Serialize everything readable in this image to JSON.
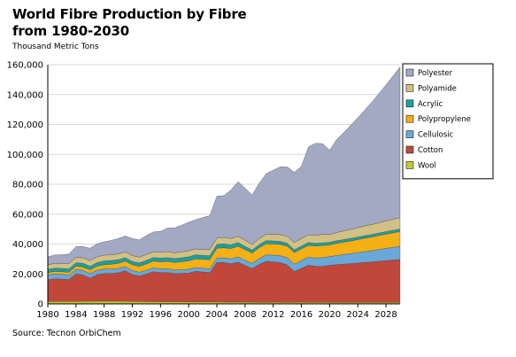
{
  "chart_data": {
    "type": "area",
    "title": "World Fibre Production by Fibre from 1980-2030",
    "subtitle": "Thousand Metric Tons",
    "source": "Source: Tecnon OrbiChem",
    "ylim": [
      0,
      160000
    ],
    "yticks": [
      0,
      20000,
      40000,
      60000,
      80000,
      100000,
      120000,
      140000,
      160000
    ],
    "ytick_labels": [
      "0",
      "20,000",
      "40,000",
      "60,000",
      "80,000",
      "100,000",
      "120,000",
      "140,000",
      "160,000"
    ],
    "xlim": [
      1980,
      2030
    ],
    "xticks": [
      1980,
      1984,
      1988,
      1992,
      1996,
      2000,
      2004,
      2008,
      2012,
      2016,
      2020,
      2024,
      2028
    ],
    "xtick_labels": [
      "1980",
      "1984",
      "1988",
      "1992",
      "1996",
      "2000",
      "2004",
      "2008",
      "2012",
      "2016",
      "2020",
      "2024",
      "2028"
    ],
    "grid": "horizontal",
    "legend": "right",
    "stacked": true,
    "x": [
      1980,
      1981,
      1982,
      1983,
      1984,
      1985,
      1986,
      1987,
      1988,
      1989,
      1990,
      1991,
      1992,
      1993,
      1994,
      1995,
      1996,
      1997,
      1998,
      1999,
      2000,
      2001,
      2002,
      2003,
      2004,
      2005,
      2006,
      2007,
      2008,
      2009,
      2010,
      2011,
      2012,
      2013,
      2014,
      2015,
      2016,
      2017,
      2018,
      2019,
      2020,
      2021,
      2022,
      2023,
      2024,
      2025,
      2026,
      2027,
      2028,
      2029,
      2030
    ],
    "series": [
      {
        "name": "Wool",
        "color": "#c8c832",
        "values": [
          1600,
          1600,
          1600,
          1600,
          1600,
          1700,
          1700,
          1800,
          1800,
          1800,
          1800,
          1700,
          1600,
          1600,
          1500,
          1500,
          1400,
          1400,
          1400,
          1400,
          1300,
          1300,
          1300,
          1300,
          1300,
          1200,
          1200,
          1200,
          1200,
          1100,
          1100,
          1100,
          1100,
          1100,
          1100,
          1100,
          1100,
          1100,
          1100,
          1100,
          1000,
          1000,
          1000,
          1000,
          1000,
          1000,
          1000,
          1000,
          1000,
          1000,
          1000
        ]
      },
      {
        "name": "Cotton",
        "color": "#c0473a",
        "values": [
          14500,
          15200,
          15000,
          14600,
          18500,
          17700,
          15500,
          17700,
          18500,
          18500,
          19000,
          20500,
          18000,
          17000,
          18500,
          20000,
          19500,
          19600,
          18800,
          19000,
          19300,
          20500,
          20000,
          19500,
          26500,
          26500,
          25600,
          26700,
          24500,
          22500,
          25300,
          27400,
          27000,
          26500,
          25000,
          20500,
          22700,
          24800,
          24000,
          24000,
          24800,
          25300,
          25600,
          25900,
          26300,
          26700,
          27000,
          27500,
          27900,
          28300,
          28700
        ]
      },
      {
        "name": "Cellulosic",
        "color": "#6aa8d8",
        "values": [
          3300,
          3300,
          3200,
          3000,
          3000,
          3000,
          3000,
          3000,
          3000,
          3000,
          2900,
          2800,
          2700,
          2500,
          2500,
          2600,
          2500,
          2500,
          2400,
          2400,
          2600,
          2500,
          2500,
          2600,
          2900,
          3100,
          3300,
          3600,
          3500,
          3500,
          3900,
          4300,
          4500,
          4600,
          4800,
          5000,
          5200,
          5300,
          5600,
          5800,
          5800,
          6100,
          6400,
          6700,
          7000,
          7300,
          7600,
          7900,
          8200,
          8500,
          8800
        ]
      },
      {
        "name": "Polypropylene",
        "color": "#f5b016",
        "values": [
          1500,
          1600,
          1700,
          1900,
          2100,
          2300,
          2500,
          2700,
          2900,
          3200,
          3400,
          3600,
          3800,
          4000,
          4200,
          4500,
          4700,
          4900,
          5100,
          5400,
          5600,
          5800,
          6000,
          6200,
          6500,
          6700,
          6900,
          7100,
          7100,
          6900,
          7200,
          7400,
          7500,
          7600,
          7700,
          7700,
          7800,
          7900,
          8000,
          8100,
          7900,
          8100,
          8300,
          8500,
          8700,
          8900,
          9100,
          9300,
          9500,
          9700,
          9900
        ]
      },
      {
        "name": "Acrylic",
        "color": "#1aa0a0",
        "values": [
          2100,
          2200,
          2200,
          2300,
          2300,
          2400,
          2400,
          2400,
          2500,
          2500,
          2400,
          2300,
          2300,
          2300,
          2400,
          2400,
          2500,
          2500,
          2600,
          2600,
          2700,
          2700,
          2600,
          2600,
          2600,
          2600,
          2500,
          2400,
          2200,
          2000,
          2100,
          2100,
          2000,
          2000,
          1900,
          1900,
          1900,
          1900,
          1800,
          1800,
          1700,
          1700,
          1700,
          1700,
          1700,
          1700,
          1700,
          1700,
          1700,
          1700,
          1700
        ]
      },
      {
        "name": "Polyamide",
        "color": "#d2c084",
        "values": [
          3200,
          3200,
          3300,
          3400,
          3600,
          3700,
          3800,
          3900,
          3900,
          3900,
          3900,
          3900,
          3900,
          3800,
          3900,
          3900,
          3900,
          4000,
          3900,
          4000,
          4000,
          4000,
          4000,
          4100,
          4200,
          4300,
          4200,
          4200,
          4000,
          3800,
          4000,
          4300,
          4400,
          4500,
          4700,
          4800,
          5000,
          5200,
          5400,
          5600,
          5200,
          5500,
          5800,
          6000,
          6200,
          6500,
          6700,
          6900,
          7200,
          7400,
          7600
        ]
      },
      {
        "name": "Polyester",
        "color": "#a3a8c3",
        "values": [
          5200,
          5600,
          5900,
          6500,
          7200,
          7600,
          8300,
          8700,
          8900,
          9500,
          10300,
          10600,
          11400,
          11600,
          12800,
          13200,
          14000,
          15800,
          16600,
          17800,
          19100,
          19500,
          21300,
          22800,
          28000,
          28000,
          32500,
          36500,
          35000,
          33000,
          37000,
          40500,
          42900,
          45400,
          46400,
          47000,
          48300,
          58800,
          61500,
          60800,
          56400,
          62200,
          65800,
          69700,
          73600,
          77600,
          81900,
          86400,
          91000,
          95800,
          100800
        ]
      }
    ]
  }
}
